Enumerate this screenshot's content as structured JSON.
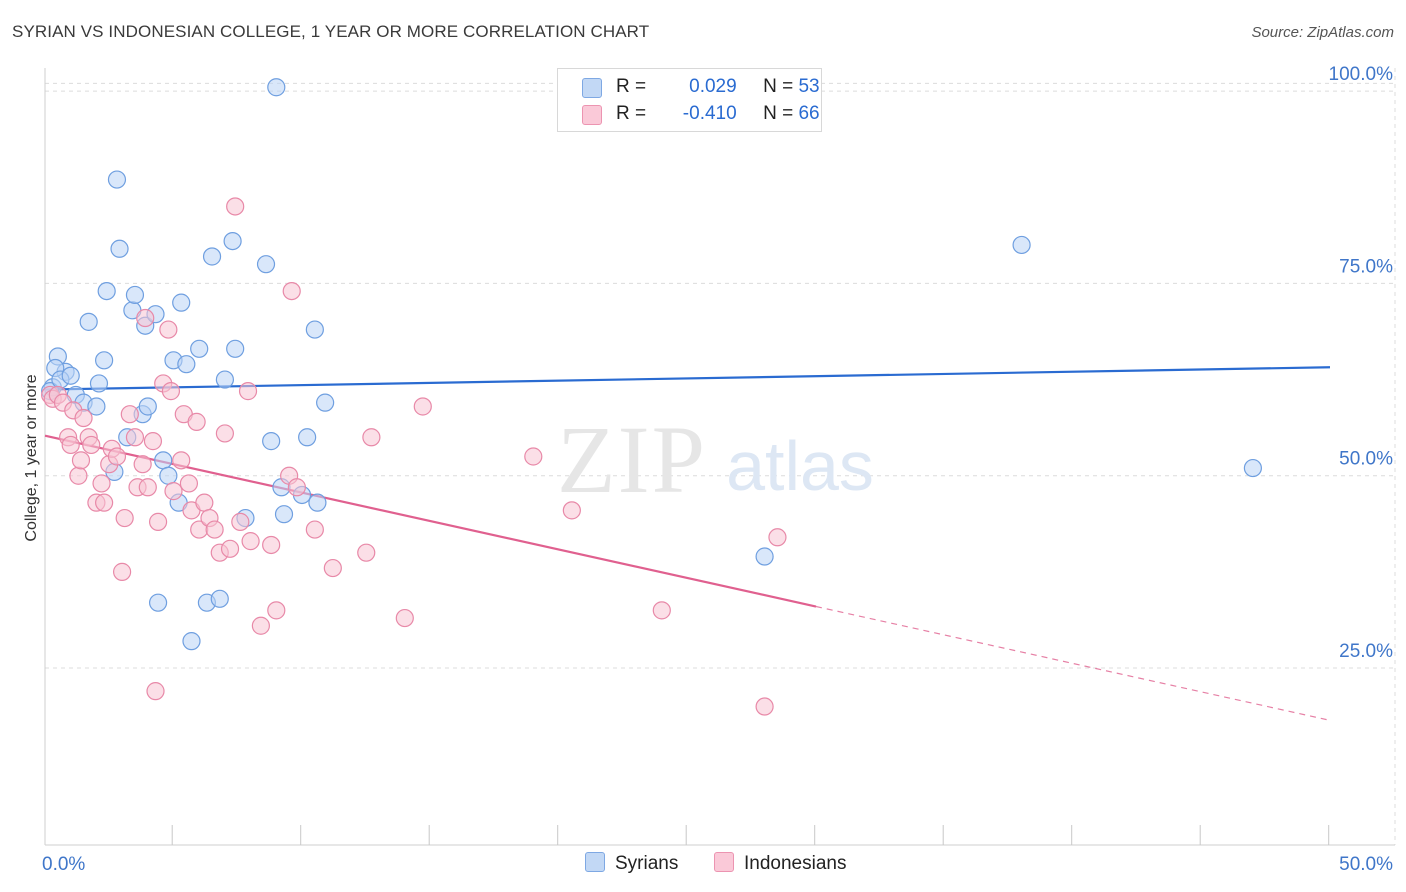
{
  "title": "SYRIAN VS INDONESIAN COLLEGE, 1 YEAR OR MORE CORRELATION CHART",
  "source": "Source: ZipAtlas.com",
  "watermark": {
    "zip": "ZIP",
    "atlas": "atlas"
  },
  "legend": {
    "rows": [
      {
        "r_label": "R =",
        "r_value": "0.029",
        "n_label": "N =",
        "n_value": "53"
      },
      {
        "r_label": "R =",
        "r_value": "-0.410",
        "n_label": "N =",
        "n_value": "66"
      }
    ]
  },
  "colors": {
    "syrian_fill": "#b9d3f5",
    "syrian_stroke": "#6f9fe0",
    "syrian_line": "#2a6bd1",
    "indonesian_fill": "#f8c4d4",
    "indonesian_stroke": "#e889a8",
    "indonesian_line": "#e0608f",
    "tick_label": "#3f76c9"
  },
  "chart_data": {
    "type": "scatter",
    "title": "SYRIAN VS INDONESIAN COLLEGE, 1 YEAR OR MORE CORRELATION CHART",
    "xlabel": "",
    "ylabel": "College, 1 year or more",
    "xlim": [
      0,
      50
    ],
    "ylim": [
      2,
      103
    ],
    "x_tick_labels": [
      {
        "value": 0,
        "label": "0.0%"
      },
      {
        "value": 50,
        "label": "50.0%"
      }
    ],
    "x_minor_ticks": [
      5,
      10,
      15,
      20,
      25,
      30,
      35,
      40,
      45,
      50
    ],
    "y_tick_labels": [
      {
        "value": 25,
        "label": "25.0%"
      },
      {
        "value": 50,
        "label": "50.0%"
      },
      {
        "value": 75,
        "label": "75.0%"
      },
      {
        "value": 100,
        "label": "100.0%"
      }
    ],
    "grid": true,
    "series": [
      {
        "name": "Syrians",
        "trendline": {
          "x": [
            0,
            50
          ],
          "y": [
            61.2,
            64.1
          ],
          "dashed_from_x": null
        },
        "points": [
          [
            0.3,
            61.5
          ],
          [
            0.5,
            65.5
          ],
          [
            0.8,
            63.5
          ],
          [
            0.4,
            64.0
          ],
          [
            0.2,
            61.0
          ],
          [
            0.6,
            62.5
          ],
          [
            1.0,
            63.0
          ],
          [
            1.2,
            60.5
          ],
          [
            1.5,
            59.5
          ],
          [
            1.7,
            70.0
          ],
          [
            2.0,
            59.0
          ],
          [
            2.1,
            62.0
          ],
          [
            2.3,
            65.0
          ],
          [
            2.4,
            74.0
          ],
          [
            2.7,
            50.5
          ],
          [
            2.8,
            88.5
          ],
          [
            2.9,
            79.5
          ],
          [
            3.2,
            55.0
          ],
          [
            3.4,
            71.5
          ],
          [
            3.5,
            73.5
          ],
          [
            3.8,
            58.0
          ],
          [
            3.9,
            69.5
          ],
          [
            4.0,
            59.0
          ],
          [
            4.3,
            71.0
          ],
          [
            4.4,
            33.5
          ],
          [
            4.6,
            52.0
          ],
          [
            4.8,
            50.0
          ],
          [
            5.0,
            65.0
          ],
          [
            5.2,
            46.5
          ],
          [
            5.3,
            72.5
          ],
          [
            5.5,
            64.5
          ],
          [
            5.7,
            28.5
          ],
          [
            6.0,
            66.5
          ],
          [
            6.3,
            33.5
          ],
          [
            6.5,
            78.5
          ],
          [
            6.8,
            34.0
          ],
          [
            7.0,
            62.5
          ],
          [
            7.3,
            80.5
          ],
          [
            7.4,
            66.5
          ],
          [
            7.8,
            44.5
          ],
          [
            8.6,
            77.5
          ],
          [
            8.8,
            54.5
          ],
          [
            9.0,
            100.5
          ],
          [
            9.2,
            48.5
          ],
          [
            9.3,
            45.0
          ],
          [
            10.0,
            47.5
          ],
          [
            10.2,
            55.0
          ],
          [
            10.5,
            69.0
          ],
          [
            10.6,
            46.5
          ],
          [
            10.9,
            59.5
          ],
          [
            28.0,
            39.5
          ],
          [
            38.0,
            80.0
          ],
          [
            47.0,
            51.0
          ]
        ]
      },
      {
        "name": "Indonesians",
        "trendline": {
          "x": [
            0,
            50
          ],
          "y": [
            55.2,
            18.2
          ],
          "dashed_from_x": 30
        },
        "points": [
          [
            0.2,
            60.5
          ],
          [
            0.3,
            60.0
          ],
          [
            0.5,
            60.5
          ],
          [
            0.7,
            59.5
          ],
          [
            0.9,
            55.0
          ],
          [
            1.0,
            54.0
          ],
          [
            1.1,
            58.5
          ],
          [
            1.3,
            50.0
          ],
          [
            1.4,
            52.0
          ],
          [
            1.5,
            57.5
          ],
          [
            1.7,
            55.0
          ],
          [
            1.8,
            54.0
          ],
          [
            2.0,
            46.5
          ],
          [
            2.2,
            49.0
          ],
          [
            2.3,
            46.5
          ],
          [
            2.5,
            51.5
          ],
          [
            2.6,
            53.5
          ],
          [
            2.8,
            52.5
          ],
          [
            3.0,
            37.5
          ],
          [
            3.1,
            44.5
          ],
          [
            3.3,
            58.0
          ],
          [
            3.5,
            55.0
          ],
          [
            3.6,
            48.5
          ],
          [
            3.8,
            51.5
          ],
          [
            3.9,
            70.5
          ],
          [
            4.0,
            48.5
          ],
          [
            4.2,
            54.5
          ],
          [
            4.3,
            22.0
          ],
          [
            4.4,
            44.0
          ],
          [
            4.6,
            62.0
          ],
          [
            4.8,
            69.0
          ],
          [
            4.9,
            61.0
          ],
          [
            5.0,
            48.0
          ],
          [
            5.3,
            52.0
          ],
          [
            5.4,
            58.0
          ],
          [
            5.6,
            49.0
          ],
          [
            5.7,
            45.5
          ],
          [
            5.9,
            57.0
          ],
          [
            6.0,
            43.0
          ],
          [
            6.2,
            46.5
          ],
          [
            6.4,
            44.5
          ],
          [
            6.6,
            43.0
          ],
          [
            6.8,
            40.0
          ],
          [
            7.0,
            55.5
          ],
          [
            7.2,
            40.5
          ],
          [
            7.4,
            85.0
          ],
          [
            7.6,
            44.0
          ],
          [
            7.9,
            61.0
          ],
          [
            8.0,
            41.5
          ],
          [
            8.4,
            30.5
          ],
          [
            8.8,
            41.0
          ],
          [
            9.0,
            32.5
          ],
          [
            9.6,
            74.0
          ],
          [
            9.5,
            50.0
          ],
          [
            9.8,
            48.5
          ],
          [
            10.5,
            43.0
          ],
          [
            11.2,
            38.0
          ],
          [
            12.5,
            40.0
          ],
          [
            12.7,
            55.0
          ],
          [
            14.0,
            31.5
          ],
          [
            14.7,
            59.0
          ],
          [
            19.0,
            52.5
          ],
          [
            20.5,
            45.5
          ],
          [
            24.0,
            32.5
          ],
          [
            28.5,
            42.0
          ],
          [
            28.0,
            20.0
          ]
        ]
      }
    ]
  },
  "bottom_legend": {
    "items": [
      "Syrians",
      "Indonesians"
    ]
  }
}
